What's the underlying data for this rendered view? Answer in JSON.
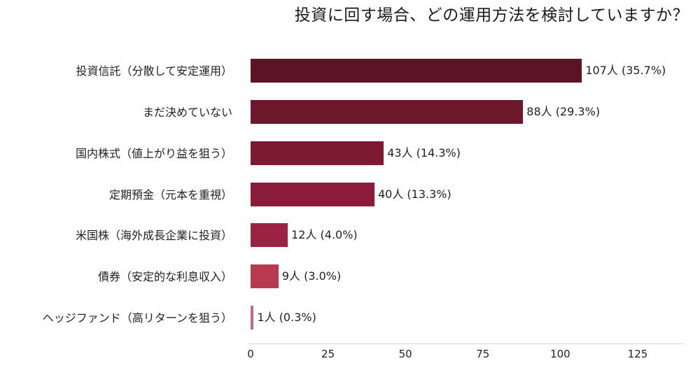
{
  "chart_data": {
    "type": "bar",
    "orientation": "horizontal",
    "title": "投資に回す場合、どの運用方法を検討していますか？",
    "xlabel": "",
    "ylabel": "",
    "xlim": [
      0,
      140
    ],
    "xticks": [
      "0",
      "25",
      "50",
      "75",
      "100",
      "125"
    ],
    "grid": false,
    "legend": null,
    "categories": [
      "投資信託（分散して安定運用）",
      "まだ決めていない",
      "国内株式（値上がり益を狙う）",
      "定期預金（元本を重視）",
      "米国株（海外成長企業に投資）",
      "債券（安定的な利息収入）",
      "ヘッジファンド（高リターンを狙う）"
    ],
    "values": [
      107,
      88,
      43,
      40,
      12,
      9,
      1
    ],
    "percentages": [
      35.7,
      29.3,
      14.3,
      13.3,
      4.0,
      3.0,
      0.3
    ],
    "data_labels": [
      "107人 (35.7%)",
      "88人 (29.3%)",
      "43人 (14.3%)",
      "40人 (13.3%)",
      "12人 (4.0%)",
      "9人 (3.0%)",
      "1人 (0.3%)"
    ],
    "colors": [
      "#5c1424",
      "#6c172c",
      "#7b1a31",
      "#8a1c3a",
      "#9b2240",
      "#b73a4e",
      "#c9687a"
    ]
  }
}
